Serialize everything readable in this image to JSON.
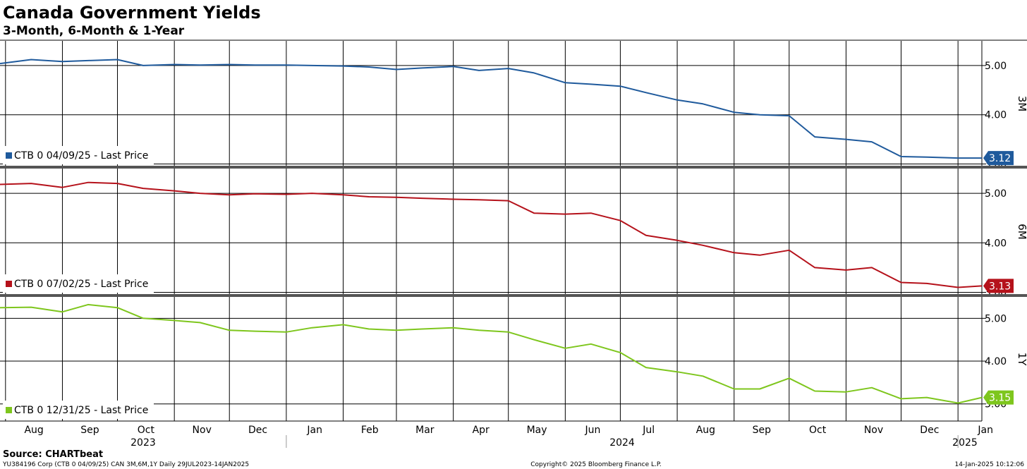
{
  "title": "Canada Government Yields",
  "subtitle": "3-Month, 6-Month & 1-Year",
  "source": "Source: CHARTbeat",
  "footer": {
    "left": "YU384196 Corp (CTB 0 04/09/25) CAN 3M,6M,1Y  Daily 29JUL2023-14JAN2025",
    "center": "Copyright© 2025 Bloomberg Finance L.P.",
    "right": "14-Jan-2025 10:12:06"
  },
  "x_axis": {
    "months": [
      "Aug",
      "Sep",
      "Oct",
      "Nov",
      "Dec",
      "Jan",
      "Feb",
      "Mar",
      "Apr",
      "May",
      "Jun",
      "Jul",
      "Aug",
      "Sep",
      "Oct",
      "Nov",
      "Dec",
      "Jan"
    ],
    "years": [
      "2023",
      "2024",
      "2025"
    ]
  },
  "chart_data": [
    {
      "type": "line",
      "axis_name": "3M",
      "legend": "CTB 0 04/09/25 - Last Price",
      "color": "#1f5a9c",
      "last_value": "3.12",
      "yticks": [
        "5.00",
        "4.00",
        "3.00"
      ],
      "ylim": [
        2.95,
        5.5
      ],
      "grid": true,
      "x": [
        "2023-07-29",
        "2023-08-15",
        "2023-09-01",
        "2023-09-15",
        "2023-10-01",
        "2023-10-15",
        "2023-11-01",
        "2023-11-15",
        "2023-12-01",
        "2023-12-15",
        "2024-01-01",
        "2024-01-15",
        "2024-02-01",
        "2024-02-15",
        "2024-03-01",
        "2024-03-15",
        "2024-04-01",
        "2024-04-15",
        "2024-05-01",
        "2024-05-15",
        "2024-06-01",
        "2024-06-15",
        "2024-07-01",
        "2024-07-15",
        "2024-08-01",
        "2024-08-15",
        "2024-09-01",
        "2024-09-15",
        "2024-10-01",
        "2024-10-15",
        "2024-11-01",
        "2024-11-15",
        "2024-12-01",
        "2024-12-15",
        "2025-01-01",
        "2025-01-14"
      ],
      "y": [
        5.04,
        5.12,
        5.08,
        5.1,
        5.12,
        5.0,
        5.02,
        5.01,
        5.02,
        5.01,
        5.01,
        5.0,
        4.99,
        4.97,
        4.92,
        4.95,
        4.98,
        4.9,
        4.94,
        4.85,
        4.65,
        4.62,
        4.58,
        4.45,
        4.3,
        4.22,
        4.05,
        4.0,
        3.98,
        3.55,
        3.5,
        3.45,
        3.15,
        3.14,
        3.12,
        3.12
      ]
    },
    {
      "type": "line",
      "axis_name": "6M",
      "legend": "CTB 0 07/02/25 - Last Price",
      "color": "#b5121b",
      "last_value": "3.13",
      "yticks": [
        "5.00",
        "4.00",
        "3.00"
      ],
      "ylim": [
        2.95,
        5.5
      ],
      "grid": true,
      "x": [
        "2023-07-29",
        "2023-08-15",
        "2023-09-01",
        "2023-09-15",
        "2023-10-01",
        "2023-10-15",
        "2023-11-01",
        "2023-11-15",
        "2023-12-01",
        "2023-12-15",
        "2024-01-01",
        "2024-01-15",
        "2024-02-01",
        "2024-02-15",
        "2024-03-01",
        "2024-03-15",
        "2024-04-01",
        "2024-04-15",
        "2024-05-01",
        "2024-05-15",
        "2024-06-01",
        "2024-06-15",
        "2024-07-01",
        "2024-07-15",
        "2024-08-01",
        "2024-08-15",
        "2024-09-01",
        "2024-09-15",
        "2024-10-01",
        "2024-10-15",
        "2024-11-01",
        "2024-11-15",
        "2024-12-01",
        "2024-12-15",
        "2025-01-01",
        "2025-01-14"
      ],
      "y": [
        5.18,
        5.2,
        5.12,
        5.22,
        5.2,
        5.1,
        5.05,
        5.0,
        4.97,
        4.99,
        4.98,
        5.0,
        4.97,
        4.93,
        4.92,
        4.9,
        4.88,
        4.87,
        4.85,
        4.6,
        4.58,
        4.6,
        4.45,
        4.15,
        4.05,
        3.95,
        3.8,
        3.75,
        3.85,
        3.5,
        3.45,
        3.5,
        3.2,
        3.18,
        3.1,
        3.13
      ]
    },
    {
      "type": "line",
      "axis_name": "1Y",
      "legend": "CTB 0 12/31/25 - Last Price",
      "color": "#7ec61d",
      "last_value": "3.15",
      "yticks": [
        "5.00",
        "4.00",
        "3.00"
      ],
      "ylim": [
        2.6,
        5.5
      ],
      "grid": true,
      "x": [
        "2023-07-29",
        "2023-08-15",
        "2023-09-01",
        "2023-09-15",
        "2023-10-01",
        "2023-10-15",
        "2023-11-01",
        "2023-11-15",
        "2023-12-01",
        "2023-12-15",
        "2024-01-01",
        "2024-01-15",
        "2024-02-01",
        "2024-02-15",
        "2024-03-01",
        "2024-03-15",
        "2024-04-01",
        "2024-04-15",
        "2024-05-01",
        "2024-05-15",
        "2024-06-01",
        "2024-06-15",
        "2024-07-01",
        "2024-07-15",
        "2024-08-01",
        "2024-08-15",
        "2024-09-01",
        "2024-09-15",
        "2024-10-01",
        "2024-10-15",
        "2024-11-01",
        "2024-11-15",
        "2024-12-01",
        "2024-12-15",
        "2025-01-01",
        "2025-01-14"
      ],
      "y": [
        5.25,
        5.26,
        5.15,
        5.32,
        5.25,
        5.0,
        4.95,
        4.9,
        4.72,
        4.7,
        4.68,
        4.78,
        4.85,
        4.75,
        4.72,
        4.75,
        4.78,
        4.72,
        4.68,
        4.5,
        4.3,
        4.4,
        4.2,
        3.85,
        3.75,
        3.65,
        3.35,
        3.35,
        3.6,
        3.3,
        3.28,
        3.38,
        3.12,
        3.15,
        3.02,
        3.15
      ]
    }
  ]
}
